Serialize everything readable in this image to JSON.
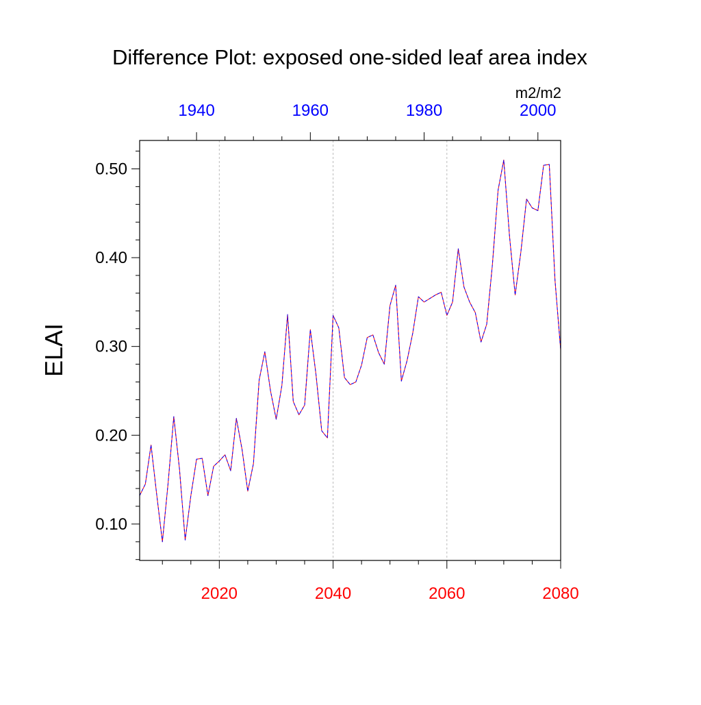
{
  "chart_data": {
    "type": "line",
    "title": "Difference Plot: exposed one-sided leaf area index",
    "ylabel": "ELAI",
    "units": "m2/m2",
    "ylim": [
      0.059,
      0.532
    ],
    "grid": "vertical dashed at bottom-axis major ticks",
    "colors": {
      "bottom_axis": "#ff0000",
      "top_axis": "#0000ff",
      "series_a": "#ff0000",
      "series_b": "#0000ff",
      "grid": "#bbbbbb"
    },
    "bottom_axis": {
      "range": [
        2006,
        2080
      ],
      "ticks": [
        2020,
        2040,
        2060,
        2080
      ],
      "tick_labels": [
        "2020",
        "2040",
        "2060",
        "2080"
      ]
    },
    "top_axis": {
      "range": [
        1930,
        2004
      ],
      "ticks": [
        1940,
        1960,
        1980,
        2000
      ],
      "tick_labels": [
        "1940",
        "1960",
        "1980",
        "2000"
      ]
    },
    "y_ticks": [
      0.1,
      0.2,
      0.3,
      0.4,
      0.5
    ],
    "y_tick_labels": [
      "0.10",
      "0.20",
      "0.30",
      "0.40",
      "0.50"
    ],
    "x": [
      2006,
      2007,
      2008,
      2009,
      2010,
      2011,
      2012,
      2013,
      2014,
      2015,
      2016,
      2017,
      2018,
      2019,
      2020,
      2021,
      2022,
      2023,
      2024,
      2025,
      2026,
      2027,
      2028,
      2029,
      2030,
      2031,
      2032,
      2033,
      2034,
      2035,
      2036,
      2037,
      2038,
      2039,
      2040,
      2041,
      2042,
      2043,
      2044,
      2045,
      2046,
      2047,
      2048,
      2049,
      2050,
      2051,
      2052,
      2053,
      2054,
      2055,
      2056,
      2057,
      2058,
      2059,
      2060,
      2061,
      2062,
      2063,
      2064,
      2065,
      2066,
      2067,
      2068,
      2069,
      2070,
      2071,
      2072,
      2073,
      2074,
      2075,
      2076,
      2077,
      2078,
      2079,
      2080
    ],
    "series": [
      {
        "values": [
          0.132,
          0.145,
          0.189,
          0.133,
          0.08,
          0.146,
          0.221,
          0.162,
          0.082,
          0.132,
          0.173,
          0.174,
          0.132,
          0.165,
          0.171,
          0.178,
          0.16,
          0.219,
          0.184,
          0.137,
          0.168,
          0.262,
          0.294,
          0.25,
          0.218,
          0.256,
          0.336,
          0.238,
          0.223,
          0.234,
          0.319,
          0.268,
          0.205,
          0.197,
          0.335,
          0.321,
          0.265,
          0.257,
          0.26,
          0.279,
          0.31,
          0.313,
          0.293,
          0.28,
          0.346,
          0.369,
          0.261,
          0.284,
          0.315,
          0.356,
          0.35,
          0.354,
          0.358,
          0.361,
          0.335,
          0.35,
          0.41,
          0.367,
          0.35,
          0.338,
          0.305,
          0.325,
          0.392,
          0.476,
          0.51,
          0.425,
          0.358,
          0.406,
          0.466,
          0.456,
          0.453,
          0.504,
          0.505,
          0.375,
          0.296
        ]
      },
      {
        "values": [
          0.132,
          0.145,
          0.189,
          0.133,
          0.08,
          0.146,
          0.221,
          0.162,
          0.082,
          0.132,
          0.173,
          0.174,
          0.132,
          0.165,
          0.171,
          0.178,
          0.16,
          0.219,
          0.184,
          0.137,
          0.168,
          0.262,
          0.294,
          0.25,
          0.218,
          0.256,
          0.336,
          0.238,
          0.223,
          0.234,
          0.319,
          0.268,
          0.205,
          0.197,
          0.335,
          0.321,
          0.265,
          0.257,
          0.26,
          0.279,
          0.31,
          0.313,
          0.293,
          0.28,
          0.346,
          0.369,
          0.261,
          0.284,
          0.315,
          0.356,
          0.35,
          0.354,
          0.358,
          0.361,
          0.335,
          0.35,
          0.41,
          0.367,
          0.35,
          0.338,
          0.305,
          0.325,
          0.392,
          0.476,
          0.51,
          0.425,
          0.358,
          0.406,
          0.466,
          0.456,
          0.453,
          0.504,
          0.505,
          0.375,
          0.296
        ]
      }
    ]
  }
}
